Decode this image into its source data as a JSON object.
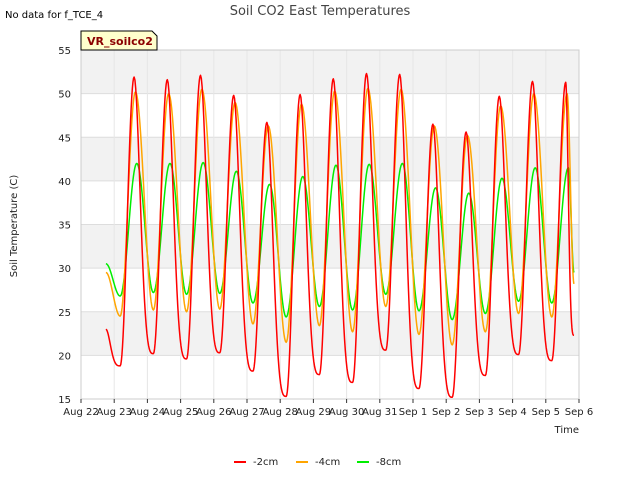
{
  "note": "No data for f_TCE_4",
  "station_label": "VR_soilco2",
  "chart_data": {
    "type": "line",
    "title": "Soil CO2 East Temperatures",
    "xlabel": "Time",
    "ylabel": "Soil Temperature (C)",
    "ylim": [
      15,
      55
    ],
    "yticks": [
      15,
      20,
      25,
      30,
      35,
      40,
      45,
      50,
      55
    ],
    "xlim": [
      "2023-08-22",
      "2023-09-06"
    ],
    "xtick_labels": [
      "Aug 22",
      "Aug 23",
      "Aug 24",
      "Aug 25",
      "Aug 26",
      "Aug 27",
      "Aug 28",
      "Aug 29",
      "Aug 30",
      "Aug 31",
      "Sep 1",
      "Sep 2",
      "Sep 3",
      "Sep 4",
      "Sep 5",
      "Sep 6"
    ],
    "grid": true,
    "legend_position": "bottom",
    "daily": [
      {
        "date": "2023-08-23",
        "min_2cm": 18.8,
        "max_2cm": 51.9,
        "min_4cm": 24.5,
        "max_4cm": 50.2,
        "min_8cm": 26.8,
        "max_8cm": 42.0
      },
      {
        "date": "2023-08-24",
        "min_2cm": 20.2,
        "max_2cm": 51.6,
        "min_4cm": 25.2,
        "max_4cm": 50.0,
        "min_8cm": 27.2,
        "max_8cm": 42.0
      },
      {
        "date": "2023-08-25",
        "min_2cm": 19.6,
        "max_2cm": 52.1,
        "min_4cm": 25.0,
        "max_4cm": 50.5,
        "min_8cm": 27.0,
        "max_8cm": 42.1
      },
      {
        "date": "2023-08-26",
        "min_2cm": 20.3,
        "max_2cm": 49.8,
        "min_4cm": 25.3,
        "max_4cm": 49.0,
        "min_8cm": 27.1,
        "max_8cm": 41.1
      },
      {
        "date": "2023-08-27",
        "min_2cm": 18.2,
        "max_2cm": 46.7,
        "min_4cm": 23.6,
        "max_4cm": 46.3,
        "min_8cm": 26.0,
        "max_8cm": 39.6
      },
      {
        "date": "2023-08-28",
        "min_2cm": 15.3,
        "max_2cm": 49.9,
        "min_4cm": 21.5,
        "max_4cm": 48.8,
        "min_8cm": 24.4,
        "max_8cm": 40.5
      },
      {
        "date": "2023-08-29",
        "min_2cm": 17.8,
        "max_2cm": 51.7,
        "min_4cm": 23.4,
        "max_4cm": 50.3,
        "min_8cm": 25.6,
        "max_8cm": 41.8
      },
      {
        "date": "2023-08-30",
        "min_2cm": 16.9,
        "max_2cm": 52.3,
        "min_4cm": 22.7,
        "max_4cm": 50.6,
        "min_8cm": 25.2,
        "max_8cm": 41.9
      },
      {
        "date": "2023-08-31",
        "min_2cm": 20.6,
        "max_2cm": 52.2,
        "min_4cm": 25.6,
        "max_4cm": 50.5,
        "min_8cm": 27.0,
        "max_8cm": 42.0
      },
      {
        "date": "2023-09-01",
        "min_2cm": 16.2,
        "max_2cm": 46.5,
        "min_4cm": 22.4,
        "max_4cm": 46.3,
        "min_8cm": 25.1,
        "max_8cm": 39.2
      },
      {
        "date": "2023-09-02",
        "min_2cm": 15.2,
        "max_2cm": 45.6,
        "min_4cm": 21.2,
        "max_4cm": 45.2,
        "min_8cm": 24.1,
        "max_8cm": 38.6
      },
      {
        "date": "2023-09-03",
        "min_2cm": 17.7,
        "max_2cm": 49.7,
        "min_4cm": 22.7,
        "max_4cm": 48.6,
        "min_8cm": 24.8,
        "max_8cm": 40.3
      },
      {
        "date": "2023-09-04",
        "min_2cm": 20.1,
        "max_2cm": 51.4,
        "min_4cm": 24.8,
        "max_4cm": 50.0,
        "min_8cm": 26.2,
        "max_8cm": 41.5
      },
      {
        "date": "2023-09-05",
        "min_2cm": 19.4,
        "max_2cm": 51.3,
        "min_4cm": 24.4,
        "max_4cm": 50.0,
        "min_8cm": 26.0,
        "max_8cm": 41.5
      }
    ],
    "series": [
      {
        "name": "-2cm",
        "color": "#ff0000",
        "start_value": 23.0,
        "end_value": 22.3
      },
      {
        "name": "-4cm",
        "color": "#ffa500",
        "start_value": 29.5,
        "end_value": 28.2
      },
      {
        "name": "-8cm",
        "color": "#00ee00",
        "start_value": 30.5,
        "end_value": 29.5
      }
    ]
  }
}
